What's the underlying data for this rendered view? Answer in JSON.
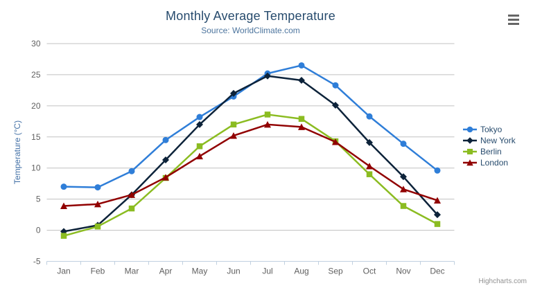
{
  "header": {
    "title": "Monthly Average Temperature",
    "subtitle": "Source: WorldClimate.com"
  },
  "context_button": {
    "icon": "hamburger-icon"
  },
  "credits": "Highcharts.com",
  "chart_data": {
    "type": "line",
    "title": "Monthly Average Temperature",
    "subtitle": "Source: WorldClimate.com",
    "categories": [
      "Jan",
      "Feb",
      "Mar",
      "Apr",
      "May",
      "Jun",
      "Jul",
      "Aug",
      "Sep",
      "Oct",
      "Nov",
      "Dec"
    ],
    "xlabel": "",
    "ylabel": "Temperature (°C)",
    "ylim": [
      -5,
      30
    ],
    "yticks": [
      -5,
      0,
      5,
      10,
      15,
      20,
      25,
      30
    ],
    "grid": true,
    "legend_position": "right",
    "series": [
      {
        "name": "Tokyo",
        "color": "#2f7ed8",
        "symbol": "circle",
        "values": [
          7.0,
          6.9,
          9.5,
          14.5,
          18.2,
          21.5,
          25.2,
          26.5,
          23.3,
          18.3,
          13.9,
          9.6
        ]
      },
      {
        "name": "New York",
        "color": "#0d233a",
        "symbol": "diamond",
        "values": [
          -0.2,
          0.8,
          5.7,
          11.3,
          17.0,
          22.0,
          24.8,
          24.1,
          20.1,
          14.1,
          8.6,
          2.5
        ]
      },
      {
        "name": "Berlin",
        "color": "#8bbc21",
        "symbol": "square",
        "values": [
          -0.9,
          0.6,
          3.5,
          8.4,
          13.5,
          17.0,
          18.6,
          17.9,
          14.3,
          9.0,
          3.9,
          1.0
        ]
      },
      {
        "name": "London",
        "color": "#910000",
        "symbol": "triangle",
        "values": [
          3.9,
          4.2,
          5.7,
          8.5,
          11.9,
          15.2,
          17.0,
          16.6,
          14.2,
          10.3,
          6.6,
          4.8
        ]
      }
    ],
    "axis_colors": {
      "gridline": "#c0c0c0",
      "x_axis_line": "#c0d0e0",
      "tick": "#c0d0e0",
      "label": "#606060"
    }
  }
}
